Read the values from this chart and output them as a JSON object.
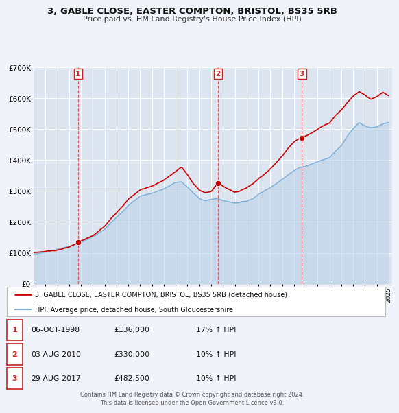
{
  "title": "3, GABLE CLOSE, EASTER COMPTON, BRISTOL, BS35 5RB",
  "subtitle": "Price paid vs. HM Land Registry's House Price Index (HPI)",
  "background_color": "#f0f4fa",
  "plot_bg_color": "#dde6f0",
  "red_line_label": "3, GABLE CLOSE, EASTER COMPTON, BRISTOL, BS35 5RB (detached house)",
  "blue_line_label": "HPI: Average price, detached house, South Gloucestershire",
  "footer_line1": "Contains HM Land Registry data © Crown copyright and database right 2024.",
  "footer_line2": "This data is licensed under the Open Government Licence v3.0.",
  "sales": [
    {
      "num": 1,
      "date": "06-OCT-1998",
      "date_val": 1998.76,
      "price": 136000,
      "pct": "17%",
      "dir": "↑"
    },
    {
      "num": 2,
      "date": "03-AUG-2010",
      "date_val": 2010.59,
      "price": 330000,
      "pct": "10%",
      "dir": "↑"
    },
    {
      "num": 3,
      "date": "29-AUG-2017",
      "date_val": 2017.66,
      "price": 482500,
      "pct": "10%",
      "dir": "↑"
    }
  ],
  "ylim": [
    0,
    700000
  ],
  "yticks": [
    0,
    100000,
    200000,
    300000,
    400000,
    500000,
    600000,
    700000
  ],
  "xlim_start": 1995.0,
  "xlim_end": 2025.3,
  "red_color": "#cc0000",
  "blue_color": "#7aaed6",
  "blue_fill_color": "#b8d0e8",
  "dashed_color": "#dd4444",
  "marker_color": "#cc0000",
  "hpi_base": [
    [
      1995.0,
      95000
    ],
    [
      1996.0,
      103000
    ],
    [
      1997.0,
      113000
    ],
    [
      1998.0,
      122000
    ],
    [
      1999.0,
      135000
    ],
    [
      2000.0,
      152000
    ],
    [
      2001.0,
      175000
    ],
    [
      2002.0,
      215000
    ],
    [
      2003.0,
      255000
    ],
    [
      2004.0,
      285000
    ],
    [
      2005.0,
      295000
    ],
    [
      2006.0,
      310000
    ],
    [
      2007.0,
      330000
    ],
    [
      2007.5,
      332000
    ],
    [
      2008.0,
      315000
    ],
    [
      2008.5,
      295000
    ],
    [
      2009.0,
      278000
    ],
    [
      2009.5,
      272000
    ],
    [
      2010.0,
      275000
    ],
    [
      2010.5,
      278000
    ],
    [
      2011.0,
      272000
    ],
    [
      2011.5,
      268000
    ],
    [
      2012.0,
      265000
    ],
    [
      2012.5,
      268000
    ],
    [
      2013.0,
      272000
    ],
    [
      2013.5,
      280000
    ],
    [
      2014.0,
      295000
    ],
    [
      2014.5,
      308000
    ],
    [
      2015.0,
      318000
    ],
    [
      2015.5,
      330000
    ],
    [
      2016.0,
      345000
    ],
    [
      2016.5,
      362000
    ],
    [
      2017.0,
      375000
    ],
    [
      2017.5,
      385000
    ],
    [
      2018.0,
      390000
    ],
    [
      2018.5,
      398000
    ],
    [
      2019.0,
      405000
    ],
    [
      2019.5,
      412000
    ],
    [
      2020.0,
      418000
    ],
    [
      2020.5,
      440000
    ],
    [
      2021.0,
      460000
    ],
    [
      2021.5,
      490000
    ],
    [
      2022.0,
      515000
    ],
    [
      2022.5,
      535000
    ],
    [
      2023.0,
      525000
    ],
    [
      2023.5,
      518000
    ],
    [
      2024.0,
      520000
    ],
    [
      2024.5,
      528000
    ],
    [
      2025.0,
      532000
    ]
  ],
  "red_base": [
    [
      1995.0,
      100000
    ],
    [
      1996.0,
      105000
    ],
    [
      1997.0,
      110000
    ],
    [
      1998.0,
      120000
    ],
    [
      1998.76,
      136000
    ],
    [
      1999.0,
      140000
    ],
    [
      2000.0,
      155000
    ],
    [
      2001.0,
      185000
    ],
    [
      2002.0,
      230000
    ],
    [
      2003.0,
      275000
    ],
    [
      2004.0,
      305000
    ],
    [
      2005.0,
      318000
    ],
    [
      2006.0,
      338000
    ],
    [
      2007.0,
      365000
    ],
    [
      2007.5,
      380000
    ],
    [
      2008.0,
      355000
    ],
    [
      2008.5,
      325000
    ],
    [
      2009.0,
      305000
    ],
    [
      2009.5,
      298000
    ],
    [
      2010.0,
      300000
    ],
    [
      2010.59,
      330000
    ],
    [
      2011.0,
      318000
    ],
    [
      2011.5,
      308000
    ],
    [
      2012.0,
      300000
    ],
    [
      2012.5,
      305000
    ],
    [
      2013.0,
      315000
    ],
    [
      2013.5,
      328000
    ],
    [
      2014.0,
      345000
    ],
    [
      2014.5,
      362000
    ],
    [
      2015.0,
      378000
    ],
    [
      2015.5,
      398000
    ],
    [
      2016.0,
      420000
    ],
    [
      2016.5,
      448000
    ],
    [
      2017.0,
      468000
    ],
    [
      2017.66,
      482500
    ],
    [
      2018.0,
      488000
    ],
    [
      2018.5,
      498000
    ],
    [
      2019.0,
      510000
    ],
    [
      2019.5,
      522000
    ],
    [
      2020.0,
      530000
    ],
    [
      2020.5,
      555000
    ],
    [
      2021.0,
      575000
    ],
    [
      2021.5,
      598000
    ],
    [
      2022.0,
      620000
    ],
    [
      2022.5,
      635000
    ],
    [
      2023.0,
      625000
    ],
    [
      2023.5,
      610000
    ],
    [
      2024.0,
      618000
    ],
    [
      2024.5,
      630000
    ],
    [
      2025.0,
      618000
    ]
  ]
}
